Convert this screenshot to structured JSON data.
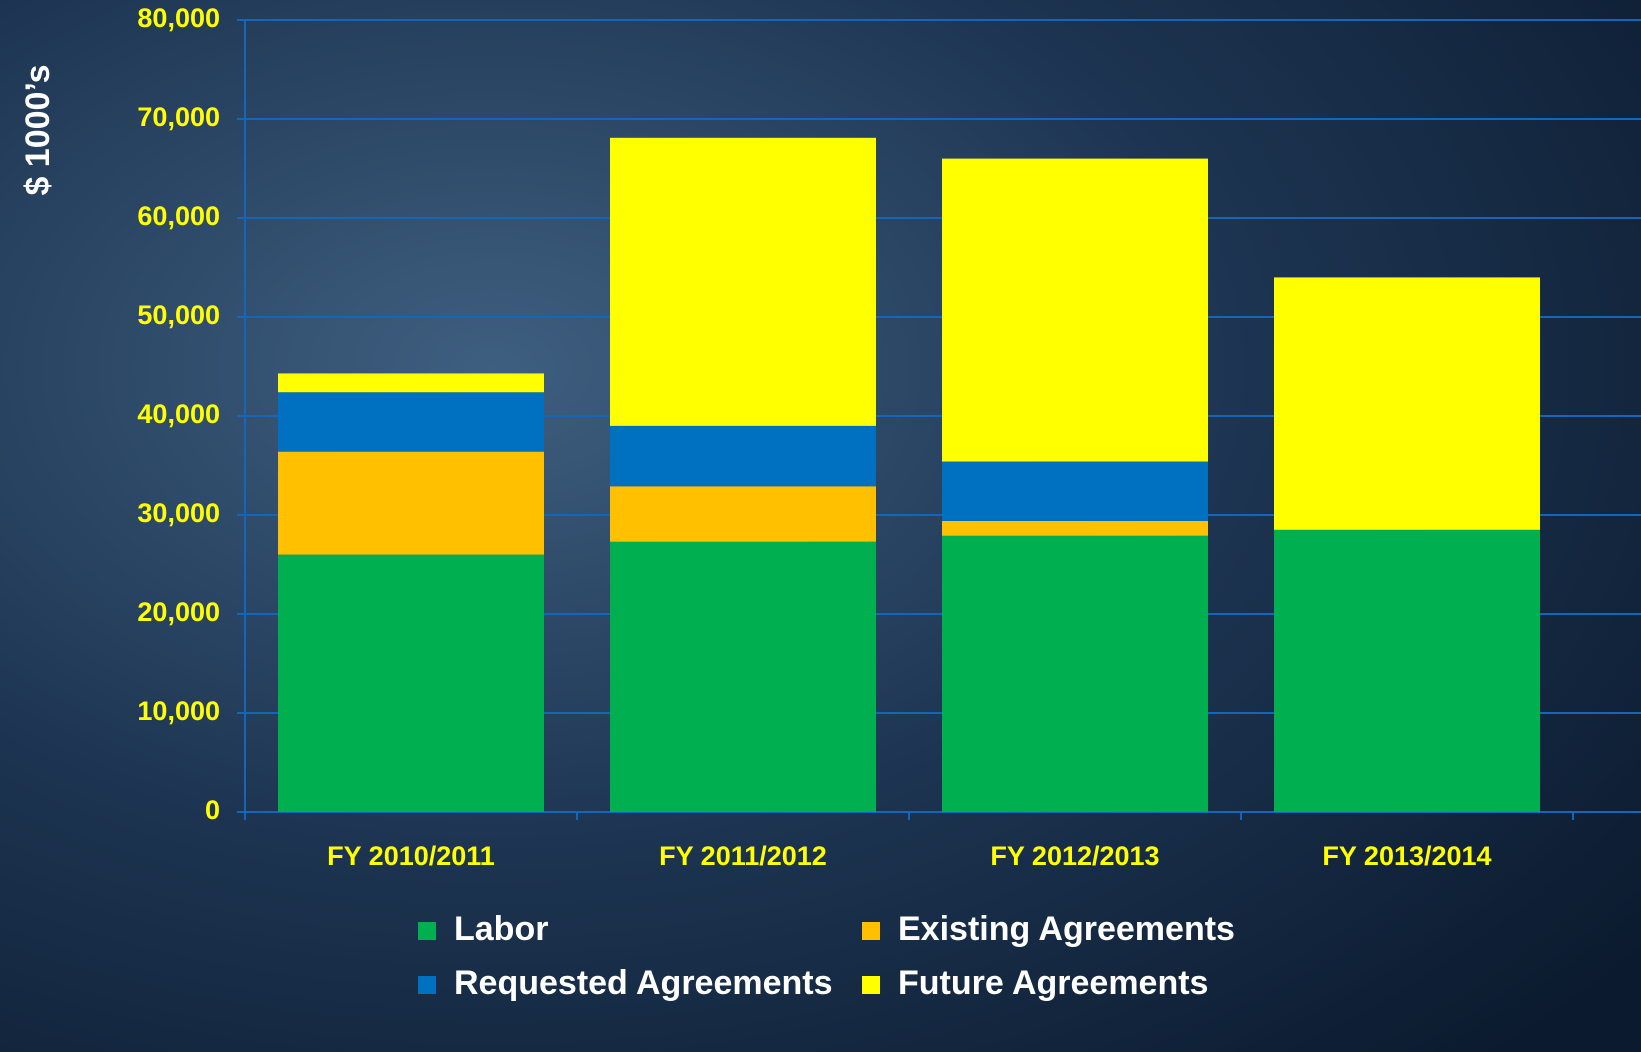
{
  "chart_data": {
    "type": "stacked_bar",
    "y_label": "$ 1000’s",
    "categories": [
      "FY 2010/2011",
      "FY 2011/2012",
      "FY 2012/2013",
      "FY 2013/2014"
    ],
    "series": [
      {
        "name": "Labor",
        "color": "#00b050",
        "values": [
          26000,
          27300,
          27900,
          28500
        ]
      },
      {
        "name": "Existing Agreements",
        "color": "#ffc000",
        "values": [
          10400,
          5600,
          1500,
          0
        ]
      },
      {
        "name": "Requested Agreements",
        "color": "#0070c0",
        "values": [
          6000,
          6100,
          6000,
          0
        ]
      },
      {
        "name": "Future Agreements",
        "color": "#ffff00",
        "values": [
          1900,
          29100,
          30600,
          25500
        ]
      }
    ],
    "ylim": [
      0,
      80000
    ],
    "yticks": [
      0,
      {
        "value": 10000,
        "label": "10,000"
      },
      {
        "value": 20000,
        "label": "20,000"
      },
      {
        "value": 30000,
        "label": "30,000"
      },
      {
        "value": 40000,
        "label": "40,000"
      },
      {
        "value": 50000,
        "label": "50,000"
      },
      {
        "value": 60000,
        "label": "60,000"
      },
      {
        "value": 70000,
        "label": "70,000"
      },
      {
        "value": 80000,
        "label": "80,000"
      }
    ],
    "grid": true,
    "legend": "bottom"
  }
}
